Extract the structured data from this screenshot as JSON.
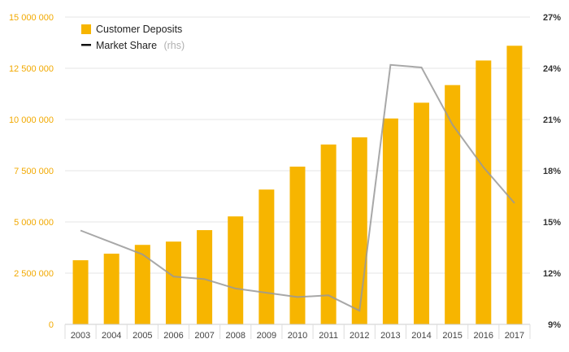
{
  "chart_data": {
    "type": "bar",
    "categories": [
      "2003",
      "2004",
      "2005",
      "2006",
      "2007",
      "2008",
      "2009",
      "2010",
      "2011",
      "2012",
      "2013",
      "2014",
      "2015",
      "2016",
      "2017"
    ],
    "series": [
      {
        "name": "Customer Deposits",
        "type": "bar",
        "axis": "left",
        "color": "#f7b500",
        "values": [
          3130000,
          3450000,
          3880000,
          4040000,
          4600000,
          5270000,
          6580000,
          7700000,
          8780000,
          9130000,
          10050000,
          10820000,
          11680000,
          12880000,
          13600000
        ]
      },
      {
        "name": "Market Share",
        "suffix": "(rhs)",
        "type": "line",
        "axis": "right",
        "color": "#999999",
        "values": [
          14.5,
          13.8,
          13.1,
          11.8,
          11.65,
          11.1,
          10.85,
          10.6,
          10.7,
          9.8,
          24.2,
          24.05,
          20.7,
          18.2,
          16.1
        ]
      }
    ],
    "y_left": {
      "ylim": [
        0,
        15000000
      ],
      "ticks": [
        0,
        2500000,
        5000000,
        7500000,
        10000000,
        12500000,
        15000000
      ],
      "tick_labels": [
        "0",
        "2 500 000",
        "5 000 000",
        "7 500 000",
        "10 000 000",
        "12 500 000",
        "15 000 000"
      ],
      "color": "#f2a900"
    },
    "y_right": {
      "ylim": [
        9,
        27
      ],
      "ticks": [
        9,
        12,
        15,
        18,
        21,
        24,
        27
      ],
      "tick_labels": [
        "9%",
        "12%",
        "15%",
        "18%",
        "21%",
        "24%",
        "27%"
      ],
      "color": "#333333"
    },
    "grid": true,
    "legend": {
      "placement": "top-left"
    }
  }
}
